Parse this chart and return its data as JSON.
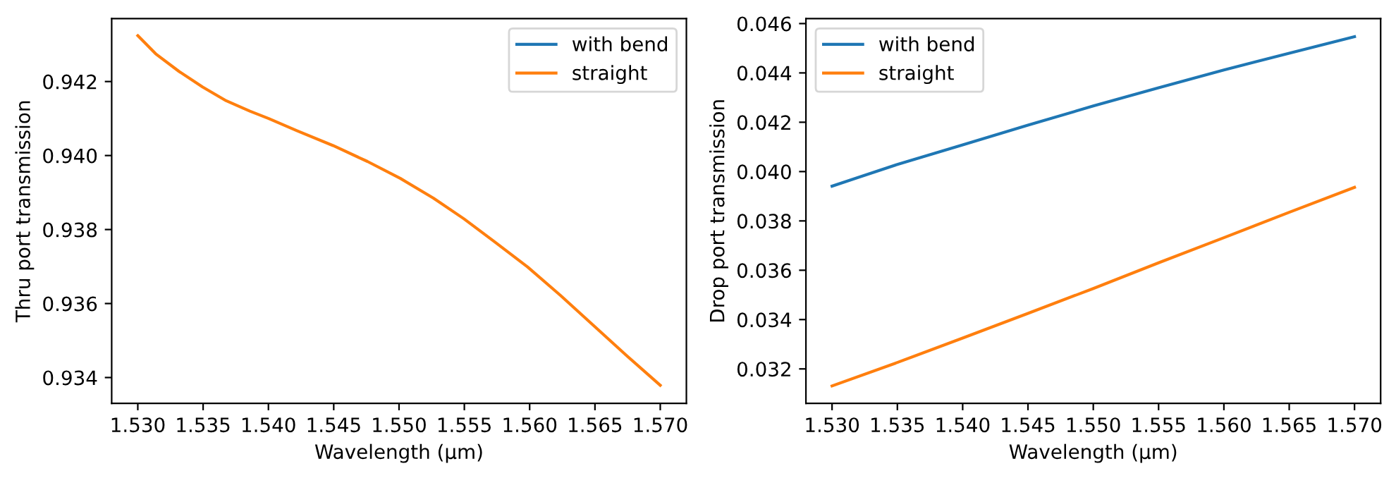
{
  "chart_data": [
    {
      "type": "line",
      "xlabel": "Wavelength (µm)",
      "ylabel": "Thru port transmission",
      "legend": "upper right",
      "x": [
        1.53,
        1.53137,
        1.53317,
        1.53497,
        1.53677,
        1.53858,
        1.54002,
        1.54218,
        1.54495,
        1.54758,
        1.55011,
        1.55263,
        1.55497,
        1.55731,
        1.55984,
        1.56236,
        1.56488,
        1.5674,
        1.57
      ],
      "series": [
        {
          "name": "with bend",
          "color": "#1f77b4",
          "values": [
            null,
            null,
            null,
            null,
            null,
            null,
            null,
            null,
            null,
            null,
            null,
            null,
            null,
            null,
            null,
            null,
            null,
            null,
            null
          ]
        },
        {
          "name": "straight",
          "color": "#ff7f0e",
          "values": [
            0.94324,
            0.94275,
            0.94227,
            0.94185,
            0.94148,
            0.9412,
            0.941,
            0.94067,
            0.94027,
            0.93984,
            0.93938,
            0.93885,
            0.93829,
            0.93767,
            0.93699,
            0.93622,
            0.93541,
            0.9346,
            0.93379
          ]
        }
      ],
      "xlim": [
        1.528,
        1.572
      ],
      "ylim": [
        0.9333,
        0.9437
      ],
      "xticks": [
        {
          "value": 1.53,
          "label": "1.530"
        },
        {
          "value": 1.535,
          "label": "1.535"
        },
        {
          "value": 1.54,
          "label": "1.540"
        },
        {
          "value": 1.545,
          "label": "1.545"
        },
        {
          "value": 1.55,
          "label": "1.550"
        },
        {
          "value": 1.555,
          "label": "1.555"
        },
        {
          "value": 1.56,
          "label": "1.560"
        },
        {
          "value": 1.565,
          "label": "1.565"
        },
        {
          "value": 1.57,
          "label": "1.570"
        }
      ],
      "yticks": [
        0.934,
        0.936,
        0.938,
        {
          "value": 0.94,
          "label": "0.940"
        },
        0.942
      ]
    },
    {
      "type": "line",
      "xlabel": "Wavelength (µm)",
      "ylabel": "Drop port transmission",
      "legend": "upper left",
      "x": [
        1.53,
        1.535,
        1.54,
        1.545,
        1.55,
        1.555,
        1.56,
        1.565,
        1.57
      ],
      "series": [
        {
          "name": "with bend",
          "color": "#1f77b4",
          "values": [
            0.03941,
            0.04029,
            0.04108,
            0.04188,
            0.04266,
            0.0434,
            0.04412,
            0.0448,
            0.04547
          ]
        },
        {
          "name": "straight",
          "color": "#ff7f0e",
          "values": [
            0.03131,
            0.03226,
            0.03325,
            0.03425,
            0.03526,
            0.0363,
            0.03732,
            0.03835,
            0.03936
          ]
        }
      ],
      "xlim": [
        1.528,
        1.572
      ],
      "ylim": [
        0.0306,
        0.0462
      ],
      "xticks": [
        {
          "value": 1.53,
          "label": "1.530"
        },
        {
          "value": 1.535,
          "label": "1.535"
        },
        {
          "value": 1.54,
          "label": "1.540"
        },
        {
          "value": 1.545,
          "label": "1.545"
        },
        {
          "value": 1.55,
          "label": "1.550"
        },
        {
          "value": 1.555,
          "label": "1.555"
        },
        {
          "value": 1.56,
          "label": "1.560"
        },
        {
          "value": 1.565,
          "label": "1.565"
        },
        {
          "value": 1.57,
          "label": "1.570"
        }
      ],
      "yticks": [
        0.032,
        0.034,
        0.036,
        0.038,
        {
          "value": 0.04,
          "label": "0.040"
        },
        0.042,
        0.044,
        0.046
      ]
    }
  ]
}
